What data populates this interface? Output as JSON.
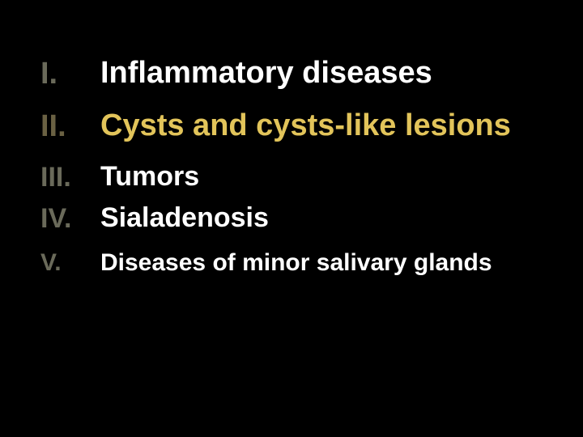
{
  "background_color": "#000000",
  "text_color_default": "#ffffff",
  "text_color_highlight": "#e2c45a",
  "numeral_color": "#6a6a5a",
  "numeral_color_highlight": "#6a6143",
  "font_family": "Arial",
  "items": [
    {
      "numeral": "I.",
      "text": "Inflammatory diseases",
      "size": "a",
      "highlight": false
    },
    {
      "numeral": "II.",
      "text": "Cysts and cysts-like lesions",
      "size": "a",
      "highlight": true
    },
    {
      "numeral": "III.",
      "text": "Tumors",
      "size": "b",
      "highlight": false
    },
    {
      "numeral": "IV.",
      "text": "Sialadenosis",
      "size": "b",
      "highlight": false
    },
    {
      "numeral": "V.",
      "text": "Diseases of  minor salivary glands",
      "size": "c",
      "highlight": false
    }
  ]
}
